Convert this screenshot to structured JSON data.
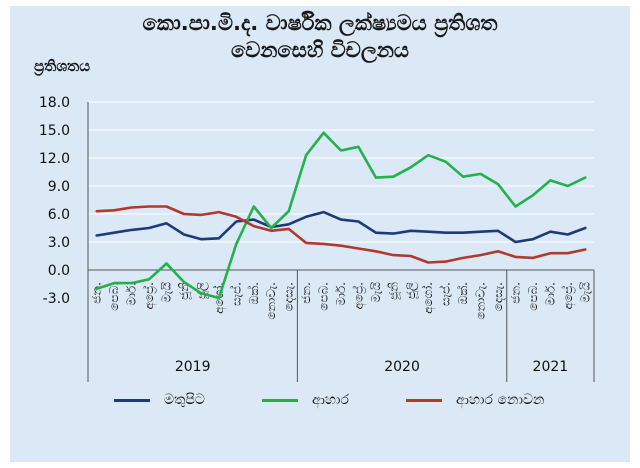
{
  "title_line1": "කො.පා.මි.ද. වාර්ෂික ලක්ෂ්‍යමය ප්‍රතිශත",
  "title_line2": "වෙනසෙහි විචලනය",
  "colors": {
    "background": "#dbe8f6",
    "core": "#1f3a7a",
    "food": "#22b14c",
    "nonfood": "#b03a2e",
    "grid": "#ffffff",
    "axis": "#555555"
  },
  "chart_data": {
    "type": "line",
    "title": "කො.පා.මි.ද. වාර්ෂික ලක්ෂ්‍යමය ප්‍රතිශත වෙනසෙහි විචලනය",
    "ylabel": "ප්‍රතිශතය",
    "xlabel": "",
    "ylim": [
      -3.0,
      18.0
    ],
    "yticks": [
      18.0,
      15.0,
      12.0,
      9.0,
      6.0,
      3.0,
      0.0,
      -3.0
    ],
    "ytick_labels": [
      "18.0",
      "15.0",
      "12.0",
      "9.0",
      "6.0",
      "3.0",
      "0.0",
      "-3.0"
    ],
    "grid": true,
    "legend_position": "bottom",
    "categories": [
      "ජන.",
      "පෙබ.",
      "මාර්.",
      "අප්‍රේ.",
      "මැයි",
      "ජූනි",
      "ජූලි",
      "අගෝ.",
      "සැප්.",
      "ඔක්.",
      "නොවැ.",
      "දෙසැ.",
      "ජන.",
      "පෙබ.",
      "මාර්.",
      "අප්‍රේ.",
      "මැයි",
      "ජූනි",
      "ජූලි",
      "අගෝ.",
      "සැප්.",
      "ඔක්.",
      "නොවැ.",
      "දෙසැ.",
      "ජන.",
      "පෙබ.",
      "මාර්.",
      "අප්‍රේ.",
      "මැයි"
    ],
    "years": [
      {
        "label": "2019",
        "start": 0,
        "end": 11
      },
      {
        "label": "2020",
        "start": 12,
        "end": 23
      },
      {
        "label": "2021",
        "start": 24,
        "end": 28
      }
    ],
    "series": [
      {
        "name": "මතුපිට",
        "key": "core",
        "values": [
          3.7,
          4.0,
          4.3,
          4.5,
          5.0,
          3.8,
          3.3,
          3.4,
          5.2,
          5.4,
          4.6,
          4.9,
          5.7,
          6.2,
          5.4,
          5.2,
          4.0,
          3.9,
          4.2,
          4.1,
          4.0,
          4.0,
          4.1,
          4.2,
          3.0,
          3.3,
          4.1,
          3.8,
          4.5
        ]
      },
      {
        "name": "ආහාර",
        "key": "food",
        "values": [
          -2.0,
          -1.4,
          -1.4,
          -1.0,
          0.7,
          -1.3,
          -2.5,
          -3.0,
          2.8,
          6.8,
          4.5,
          6.3,
          12.3,
          14.7,
          12.8,
          13.2,
          9.9,
          10.0,
          11.0,
          12.3,
          11.6,
          10.0,
          10.3,
          9.2,
          6.8,
          8.0,
          9.6,
          9.0,
          9.9
        ]
      },
      {
        "name": "ආහාර නොවන",
        "key": "nonfood",
        "values": [
          6.3,
          6.4,
          6.7,
          6.8,
          6.8,
          6.0,
          5.9,
          6.2,
          5.7,
          4.7,
          4.2,
          4.4,
          2.9,
          2.8,
          2.6,
          2.3,
          2.0,
          1.6,
          1.5,
          0.8,
          0.9,
          1.3,
          1.6,
          2.0,
          1.4,
          1.3,
          1.8,
          1.8,
          2.2
        ]
      }
    ]
  }
}
